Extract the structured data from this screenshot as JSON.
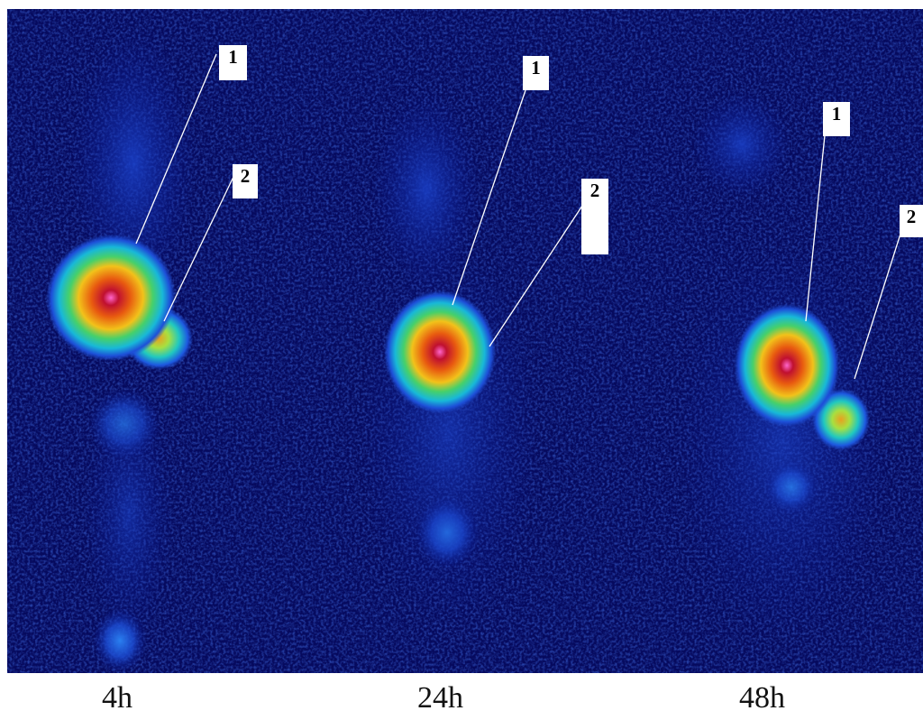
{
  "panels": [
    {
      "time_label": "4h",
      "callouts": [
        "1",
        "2"
      ]
    },
    {
      "time_label": "24h",
      "callouts": [
        "1",
        "2"
      ]
    },
    {
      "time_label": "48h",
      "callouts": [
        "1",
        "2"
      ]
    }
  ],
  "colors": {
    "background": "#060a5e",
    "low_signal": "#1d4fd8",
    "mid_signal": "#19c8c8",
    "high_signal": "#ffcc00",
    "peak_signal": "#e03010",
    "hotspot": "#ff66cc",
    "callout_line": "#ffffff"
  }
}
